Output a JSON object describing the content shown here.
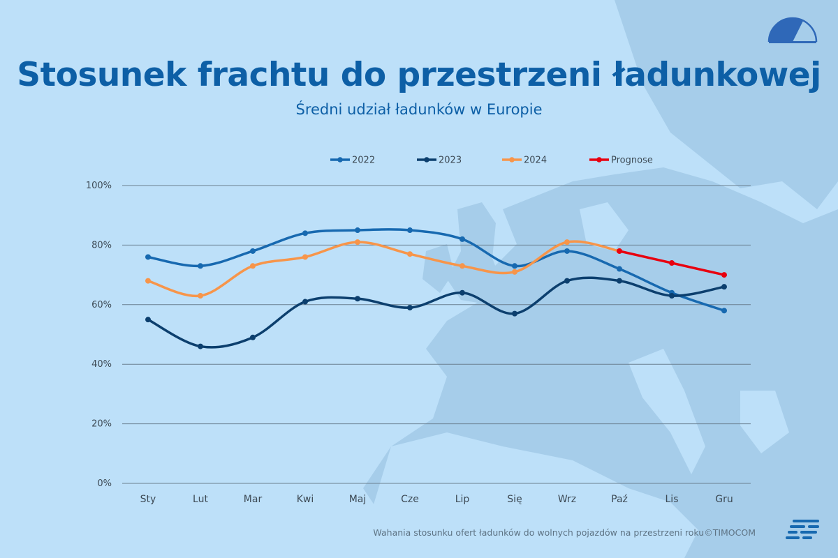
{
  "header": {
    "title": "Stosunek frachtu do przestrzeni ładunkowej",
    "subtitle": "Średni udział ładunków w Europie"
  },
  "footer": {
    "source": "Wahania stosunku ofert ładunków do wolnych pojazdów na przestrzeni roku©TIMOCOM"
  },
  "icons": {
    "gauge": "gauge-icon",
    "logo": "timocom-logo-icon"
  },
  "colors": {
    "background": "#bde0f9",
    "map": "#a6cdea",
    "title": "#0d5fa6",
    "grid": "#6a7f90"
  },
  "chart_data": {
    "type": "line",
    "categories": [
      "Sty",
      "Lut",
      "Mar",
      "Kwi",
      "Maj",
      "Cze",
      "Lip",
      "Się",
      "Wrz",
      "Paź",
      "Lis",
      "Gru"
    ],
    "series": [
      {
        "name": "2022",
        "color": "#1769b0",
        "values": [
          76,
          73,
          78,
          84,
          85,
          85,
          82,
          73,
          78,
          72,
          64,
          58
        ]
      },
      {
        "name": "2023",
        "color": "#0c3f6e",
        "values": [
          55,
          46,
          49,
          61,
          62,
          59,
          64,
          57,
          68,
          68,
          63,
          66
        ]
      },
      {
        "name": "2024",
        "color": "#f7954a",
        "values": [
          68,
          63,
          73,
          76,
          81,
          77,
          73,
          71,
          81,
          78,
          null,
          null
        ]
      },
      {
        "name": "Prognose",
        "color": "#e8000f",
        "values": [
          null,
          null,
          null,
          null,
          null,
          null,
          null,
          null,
          null,
          78,
          74,
          70
        ]
      }
    ],
    "yticks": [
      "0%",
      "20%",
      "40%",
      "60%",
      "80%",
      "100%"
    ],
    "ylim": [
      0,
      100
    ],
    "grid": true,
    "legend": "top"
  }
}
